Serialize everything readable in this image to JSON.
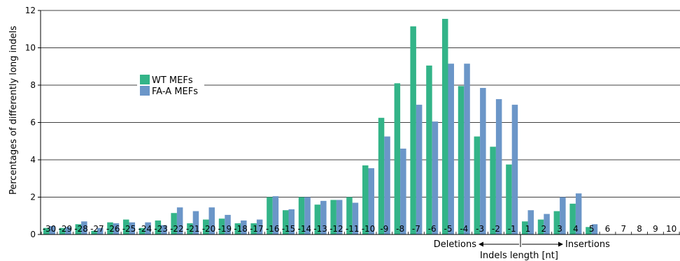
{
  "chart_data": {
    "type": "bar",
    "ylabel": "Percentages of differently long indels",
    "xlabel": "Indels length [nt]",
    "ylim": [
      0,
      12
    ],
    "yticks": [
      0,
      2,
      4,
      6,
      8,
      10,
      12
    ],
    "grid": "horizontal",
    "legend_position": "upper-left",
    "annotations": {
      "left": "Deletions",
      "right": "Insertions"
    },
    "categories": [
      "-30",
      "-29",
      "-28",
      "-27",
      "-26",
      "-25",
      "-24",
      "-23",
      "-22",
      "-21",
      "-20",
      "-19",
      "-18",
      "-17",
      "-16",
      "-15",
      "-14",
      "-13",
      "-12",
      "-11",
      "-10",
      "-9",
      "-8",
      "-7",
      "-6",
      "-5",
      "-4",
      "-3",
      "-2",
      "-1",
      "1",
      "2",
      "3",
      "4",
      "5",
      "6",
      "7",
      "8",
      "9",
      "10"
    ],
    "series": [
      {
        "name": "WT MEFs",
        "color": "#33b488",
        "values": [
          0.35,
          0.35,
          0.55,
          0.2,
          0.65,
          0.8,
          0.35,
          0.75,
          1.15,
          0.6,
          0.8,
          0.85,
          0.6,
          0.6,
          2.0,
          1.3,
          2.0,
          1.6,
          1.85,
          2.0,
          3.7,
          6.25,
          8.1,
          11.15,
          9.05,
          11.55,
          7.95,
          5.25,
          4.7,
          3.75,
          0.7,
          0.8,
          1.25,
          1.65,
          0.4,
          0,
          0,
          0,
          0,
          0
        ]
      },
      {
        "name": "FA-A MEFs",
        "color": "#6b96c8",
        "values": [
          0.45,
          0.4,
          0.7,
          0.35,
          0.6,
          0.65,
          0.65,
          0.5,
          1.45,
          1.25,
          1.45,
          1.05,
          0.75,
          0.8,
          2.05,
          1.35,
          2.0,
          1.8,
          1.85,
          1.7,
          3.55,
          5.25,
          4.6,
          6.95,
          6.05,
          9.15,
          9.15,
          7.85,
          7.25,
          6.95,
          1.3,
          1.1,
          2.0,
          2.2,
          0.55,
          0,
          0,
          0,
          0,
          0
        ]
      }
    ]
  }
}
